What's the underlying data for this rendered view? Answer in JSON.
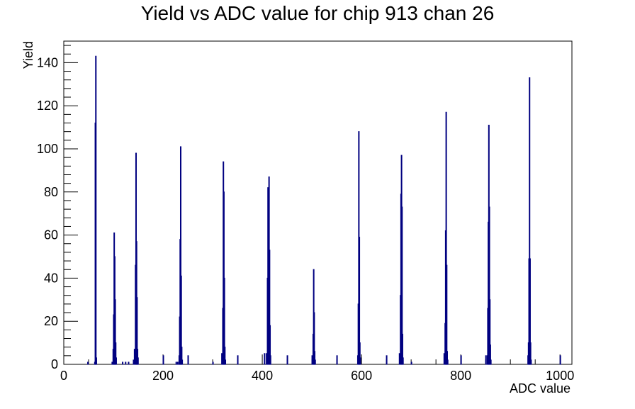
{
  "chart_data": {
    "type": "histogram",
    "title": "Yield vs ADC value for chip 913 chan 26",
    "xlabel": "ADC value",
    "ylabel": "Yield",
    "xlim": [
      0,
      1024
    ],
    "ylim": [
      0,
      150
    ],
    "x_ticks": [
      0,
      200,
      400,
      600,
      800,
      1000
    ],
    "y_ticks": [
      0,
      20,
      40,
      60,
      80,
      100,
      120,
      140
    ],
    "line_color": "#000080",
    "grid": false,
    "bins": [
      {
        "x": 48,
        "y": 1
      },
      {
        "x": 62,
        "y": 1
      },
      {
        "x": 63,
        "y": 112
      },
      {
        "x": 64,
        "y": 143
      },
      {
        "x": 65,
        "y": 3
      },
      {
        "x": 97,
        "y": 1
      },
      {
        "x": 99,
        "y": 7
      },
      {
        "x": 100,
        "y": 23
      },
      {
        "x": 101,
        "y": 61
      },
      {
        "x": 102,
        "y": 50
      },
      {
        "x": 103,
        "y": 30
      },
      {
        "x": 104,
        "y": 10
      },
      {
        "x": 105,
        "y": 3
      },
      {
        "x": 118,
        "y": 1
      },
      {
        "x": 124,
        "y": 1
      },
      {
        "x": 130,
        "y": 1
      },
      {
        "x": 140,
        "y": 2
      },
      {
        "x": 142,
        "y": 7
      },
      {
        "x": 144,
        "y": 46
      },
      {
        "x": 145,
        "y": 98
      },
      {
        "x": 146,
        "y": 57
      },
      {
        "x": 147,
        "y": 31
      },
      {
        "x": 148,
        "y": 7
      },
      {
        "x": 149,
        "y": 3
      },
      {
        "x": 200,
        "y": 4
      },
      {
        "x": 226,
        "y": 1
      },
      {
        "x": 229,
        "y": 1
      },
      {
        "x": 232,
        "y": 4
      },
      {
        "x": 233,
        "y": 22
      },
      {
        "x": 234,
        "y": 58
      },
      {
        "x": 235,
        "y": 101
      },
      {
        "x": 236,
        "y": 41
      },
      {
        "x": 237,
        "y": 8
      },
      {
        "x": 238,
        "y": 2
      },
      {
        "x": 250,
        "y": 4
      },
      {
        "x": 300,
        "y": 1
      },
      {
        "x": 318,
        "y": 5
      },
      {
        "x": 320,
        "y": 26
      },
      {
        "x": 321,
        "y": 94
      },
      {
        "x": 322,
        "y": 80
      },
      {
        "x": 323,
        "y": 40
      },
      {
        "x": 324,
        "y": 8
      },
      {
        "x": 325,
        "y": 2
      },
      {
        "x": 350,
        "y": 4
      },
      {
        "x": 404,
        "y": 5
      },
      {
        "x": 408,
        "y": 5
      },
      {
        "x": 410,
        "y": 40
      },
      {
        "x": 411,
        "y": 82
      },
      {
        "x": 413,
        "y": 87
      },
      {
        "x": 414,
        "y": 53
      },
      {
        "x": 415,
        "y": 18
      },
      {
        "x": 416,
        "y": 4
      },
      {
        "x": 450,
        "y": 4
      },
      {
        "x": 500,
        "y": 4
      },
      {
        "x": 502,
        "y": 14
      },
      {
        "x": 503,
        "y": 44
      },
      {
        "x": 504,
        "y": 24
      },
      {
        "x": 505,
        "y": 6
      },
      {
        "x": 506,
        "y": 2
      },
      {
        "x": 550,
        "y": 4
      },
      {
        "x": 592,
        "y": 4
      },
      {
        "x": 593,
        "y": 28
      },
      {
        "x": 594,
        "y": 108
      },
      {
        "x": 595,
        "y": 59
      },
      {
        "x": 596,
        "y": 10
      },
      {
        "x": 597,
        "y": 3
      },
      {
        "x": 650,
        "y": 4
      },
      {
        "x": 676,
        "y": 5
      },
      {
        "x": 678,
        "y": 32
      },
      {
        "x": 679,
        "y": 79
      },
      {
        "x": 680,
        "y": 97
      },
      {
        "x": 681,
        "y": 73
      },
      {
        "x": 682,
        "y": 14
      },
      {
        "x": 683,
        "y": 3
      },
      {
        "x": 700,
        "y": 1
      },
      {
        "x": 766,
        "y": 5
      },
      {
        "x": 768,
        "y": 19
      },
      {
        "x": 769,
        "y": 62
      },
      {
        "x": 770,
        "y": 117
      },
      {
        "x": 771,
        "y": 46
      },
      {
        "x": 772,
        "y": 6
      },
      {
        "x": 773,
        "y": 2
      },
      {
        "x": 800,
        "y": 4
      },
      {
        "x": 850,
        "y": 4
      },
      {
        "x": 853,
        "y": 4
      },
      {
        "x": 854,
        "y": 26
      },
      {
        "x": 855,
        "y": 66
      },
      {
        "x": 856,
        "y": 111
      },
      {
        "x": 857,
        "y": 73
      },
      {
        "x": 858,
        "y": 30
      },
      {
        "x": 859,
        "y": 9
      },
      {
        "x": 860,
        "y": 2
      },
      {
        "x": 935,
        "y": 4
      },
      {
        "x": 936,
        "y": 10
      },
      {
        "x": 937,
        "y": 49
      },
      {
        "x": 938,
        "y": 133
      },
      {
        "x": 939,
        "y": 49
      },
      {
        "x": 940,
        "y": 10
      },
      {
        "x": 941,
        "y": 2
      },
      {
        "x": 1000,
        "y": 4
      }
    ]
  }
}
